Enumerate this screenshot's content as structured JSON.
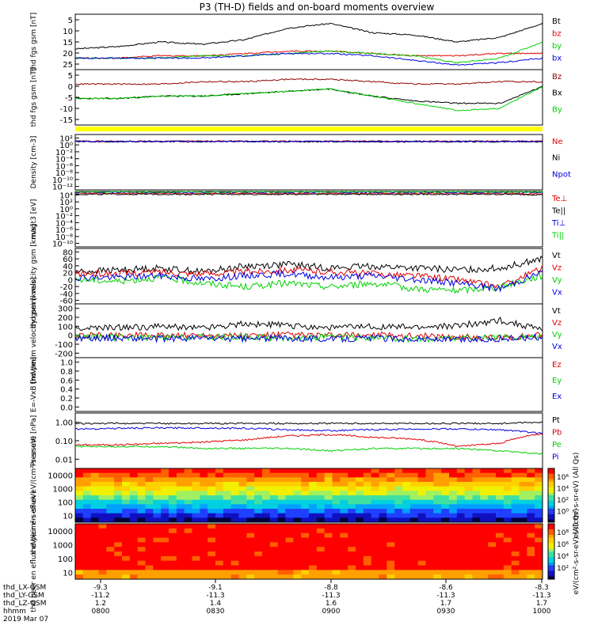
{
  "title": "P3 (TH-D) fields and on-board moments overview",
  "footer": {
    "row_labels": [
      "thd_LX-GSM",
      "thd_LY-GSM",
      "thd_LZ-GSM",
      "hhmm",
      "2019 Mar 07"
    ],
    "lx": [
      "-9.3",
      "-9.1",
      "-8.8",
      "-8.6",
      "-8.3"
    ],
    "ly": [
      "-11.2",
      "-11.3",
      "-11.3",
      "-11.3",
      "-11.3"
    ],
    "lz": [
      "1.2",
      "1.4",
      "1.6",
      "1.7",
      "1.7"
    ],
    "hhmm": [
      "0800",
      "0830",
      "0900",
      "0930",
      "1000"
    ]
  },
  "colors": {
    "black": "#000000",
    "red": "#e00000",
    "green": "#00d000",
    "blue": "#0000e0",
    "darkred": "#900000",
    "yellow": "#ffff00"
  },
  "chart_data": [
    {
      "type": "line",
      "ylabel": "thd fgs gsm [nT]",
      "ylim": [
        2,
        26
      ],
      "yticks": [
        "5",
        "10",
        "15",
        "20",
        "25"
      ],
      "series": [
        {
          "name": "Bt",
          "color": "#000000",
          "values": [
            11,
            12,
            14,
            13,
            15,
            20,
            22,
            18,
            17,
            14,
            16,
            22
          ]
        },
        {
          "name": "bz",
          "color": "#e00000",
          "values": [
            7,
            7,
            8,
            8,
            9,
            10,
            10,
            9,
            8,
            8,
            9,
            9
          ]
        },
        {
          "name": "by",
          "color": "#00d000",
          "values": [
            7,
            7,
            7,
            8,
            8,
            9,
            10,
            9,
            8,
            5,
            7,
            14
          ]
        },
        {
          "name": "bx",
          "color": "#0000e0",
          "values": [
            7,
            7,
            7,
            7,
            8,
            9,
            9,
            8,
            6,
            4,
            5,
            7
          ]
        }
      ]
    },
    {
      "type": "line",
      "ylabel": "thd fgs gsm [nT]",
      "ylim": [
        -17,
        6
      ],
      "yticks": [
        "5",
        "0",
        "-5",
        "-10",
        "-15"
      ],
      "series": [
        {
          "name": "Bz",
          "color": "#900000",
          "values": [
            0,
            0,
            0,
            1,
            1,
            2,
            2,
            1,
            0,
            0,
            1,
            1
          ]
        },
        {
          "name": "Bx",
          "color": "#000000",
          "values": [
            -6,
            -6,
            -5,
            -5,
            -4,
            -3,
            -2,
            -5,
            -7,
            -8,
            -8,
            -1
          ]
        },
        {
          "name": "By",
          "color": "#00d000",
          "values": [
            -6,
            -6,
            -5,
            -5,
            -4,
            -3,
            -2,
            -5,
            -8,
            -11,
            -10,
            -1
          ]
        }
      ]
    },
    {
      "type": "line",
      "ylabel": "Density [cm-3]",
      "ylim": [
        -12,
        2
      ],
      "yticks": [
        "10²",
        "10⁰",
        "10⁻²",
        "10⁻⁴",
        "10⁻⁶",
        "10⁻⁸",
        "10⁻¹⁰",
        "10⁻¹²"
      ],
      "series": [
        {
          "name": "Ne",
          "color": "#e00000",
          "values": [
            0.3,
            0.3,
            0.3,
            0.3,
            0.3,
            0.3,
            0.3,
            0.3,
            0.3,
            0.3,
            0.3,
            0.3
          ]
        },
        {
          "name": "Ni",
          "color": "#000000",
          "values": [
            0.2,
            0.2,
            0.2,
            0.2,
            0.2,
            0.2,
            0.2,
            0.2,
            0.2,
            0.2,
            0.2,
            0.2
          ]
        },
        {
          "name": "Npot",
          "color": "#0000e0",
          "values": [
            0.25,
            0.25,
            0.25,
            0.25,
            0.25,
            0.25,
            0.25,
            0.25,
            0.25,
            0.25,
            0.25,
            0.25
          ]
        }
      ]
    },
    {
      "type": "line",
      "ylabel": "magt3 [eV]",
      "ylim": [
        -10,
        4
      ],
      "yticks": [
        "10⁴",
        "10²",
        "10⁰",
        "10⁻²",
        "10⁻⁴",
        "10⁻⁶",
        "10⁻⁸",
        "10⁻¹⁰"
      ],
      "series": [
        {
          "name": "Te⊥",
          "color": "#e00000",
          "values": [
            3.5,
            3.5,
            3.5,
            3.5,
            3.5,
            3.5,
            3.5,
            3.5,
            3.5,
            3.5,
            3.5,
            3.4
          ]
        },
        {
          "name": "Te||",
          "color": "#000000",
          "values": [
            3.3,
            3.3,
            3.3,
            3.3,
            3.3,
            3.3,
            3.3,
            3.3,
            3.3,
            3.3,
            3.3,
            3.2
          ]
        },
        {
          "name": "Ti⊥",
          "color": "#0000e0",
          "values": [
            3.8,
            3.8,
            3.8,
            3.8,
            3.8,
            3.8,
            3.8,
            3.8,
            3.8,
            3.8,
            3.8,
            3.8
          ]
        },
        {
          "name": "Ti||",
          "color": "#00d000",
          "values": [
            3.9,
            3.9,
            3.9,
            3.9,
            3.9,
            3.9,
            3.9,
            3.9,
            3.9,
            3.9,
            3.9,
            3.9
          ]
        }
      ]
    },
    {
      "type": "line",
      "ylabel": "thd peim velocity gsm [km/s]",
      "ylim": [
        -65,
        82
      ],
      "yticks": [
        "80",
        "60",
        "40",
        "20",
        "0",
        "-20",
        "-40",
        "-60"
      ],
      "series": [
        {
          "name": "Vt",
          "color": "#000000",
          "values": [
            20,
            25,
            30,
            20,
            35,
            40,
            30,
            35,
            30,
            25,
            30,
            55
          ]
        },
        {
          "name": "Vz",
          "color": "#e00000",
          "values": [
            15,
            15,
            20,
            15,
            20,
            25,
            20,
            15,
            10,
            0,
            -20,
            30
          ]
        },
        {
          "name": "Vy",
          "color": "#00d000",
          "values": [
            0,
            -5,
            5,
            -10,
            -20,
            -10,
            -20,
            -10,
            -25,
            -30,
            -20,
            10
          ]
        },
        {
          "name": "Vx",
          "color": "#0000e0",
          "values": [
            5,
            5,
            10,
            0,
            10,
            15,
            5,
            10,
            0,
            -10,
            -25,
            20
          ]
        }
      ]
    },
    {
      "type": "line",
      "ylabel": "thd peem velocity gsm [km/s]",
      "ylim": [
        -210,
        310
      ],
      "yticks": [
        "300",
        "200",
        "100",
        "0",
        "-100",
        "-200"
      ],
      "series": [
        {
          "name": "Vt",
          "color": "#000000",
          "values": [
            70,
            80,
            90,
            80,
            120,
            100,
            80,
            90,
            80,
            100,
            150,
            60
          ]
        },
        {
          "name": "Vz",
          "color": "#e00000",
          "values": [
            0,
            10,
            0,
            10,
            0,
            10,
            0,
            10,
            0,
            -10,
            -20,
            10
          ]
        },
        {
          "name": "Vy",
          "color": "#00d000",
          "values": [
            -10,
            -10,
            -20,
            -10,
            -10,
            -20,
            -10,
            -20,
            -30,
            -20,
            -20,
            0
          ]
        },
        {
          "name": "Vx",
          "color": "#0000e0",
          "values": [
            -20,
            -20,
            -30,
            -20,
            -30,
            -20,
            -30,
            -20,
            -30,
            -40,
            -30,
            -10
          ]
        }
      ]
    },
    {
      "type": "line",
      "ylabel": "E=-VxB [mV/m]",
      "ylim": [
        0,
        1
      ],
      "yticks": [
        "1.0",
        "0.8",
        "0.6",
        "0.4",
        "0.2",
        "0.0"
      ],
      "series": [
        {
          "name": "Ez",
          "color": "#e00000",
          "values": []
        },
        {
          "name": "Ey",
          "color": "#00d000",
          "values": []
        },
        {
          "name": "Ex",
          "color": "#0000e0",
          "values": []
        }
      ]
    },
    {
      "type": "line",
      "ylabel": "Pressure [nPa]",
      "yscale": "log",
      "ylim": [
        0.008,
        1.3
      ],
      "yticks": [
        "1.00",
        "0.10",
        "0.01"
      ],
      "series": [
        {
          "name": "Pt",
          "color": "#000000",
          "values": [
            0.5,
            0.5,
            0.5,
            0.5,
            0.5,
            0.5,
            0.5,
            0.5,
            0.5,
            0.5,
            0.5,
            0.55
          ]
        },
        {
          "name": "Pb",
          "color": "#e00000",
          "values": [
            0.07,
            0.07,
            0.08,
            0.09,
            0.11,
            0.16,
            0.18,
            0.14,
            0.12,
            0.06,
            0.08,
            0.2
          ]
        },
        {
          "name": "Pe",
          "color": "#00d000",
          "values": [
            0.06,
            0.06,
            0.06,
            0.05,
            0.05,
            0.05,
            0.04,
            0.05,
            0.05,
            0.05,
            0.04,
            0.03
          ]
        },
        {
          "name": "Pi",
          "color": "#0000e0",
          "values": [
            0.3,
            0.32,
            0.33,
            0.33,
            0.32,
            0.28,
            0.26,
            0.28,
            0.3,
            0.3,
            0.28,
            0.2
          ]
        }
      ]
    },
    {
      "type": "heatmap",
      "ylabel": "thd peir en eflux eV/(cm²-s-sr-eV)",
      "yscale": "log",
      "ylim": [
        5,
        20000
      ],
      "yticks": [
        "10000",
        "1000",
        "100",
        "10"
      ],
      "colorbar": {
        "label": "eV/(cm²-s-sr-eV) (All Qs)",
        "ticks": [
          "10⁶",
          "10⁴",
          "10²",
          "10⁰"
        ],
        "range": [
          0,
          7
        ]
      }
    },
    {
      "type": "heatmap",
      "ylabel": "thd peer en eflux eV/(cm²-s-sr-eV)",
      "yscale": "log",
      "ylim": [
        5,
        20000
      ],
      "yticks": [
        "10000",
        "1000",
        "100",
        "10"
      ],
      "colorbar": {
        "label": "eV/(cm²-s-sr-eV) (All Qs)",
        "ticks": [
          "10⁸",
          "10⁶",
          "10⁴",
          "10²"
        ],
        "range": [
          1,
          9
        ]
      }
    }
  ]
}
